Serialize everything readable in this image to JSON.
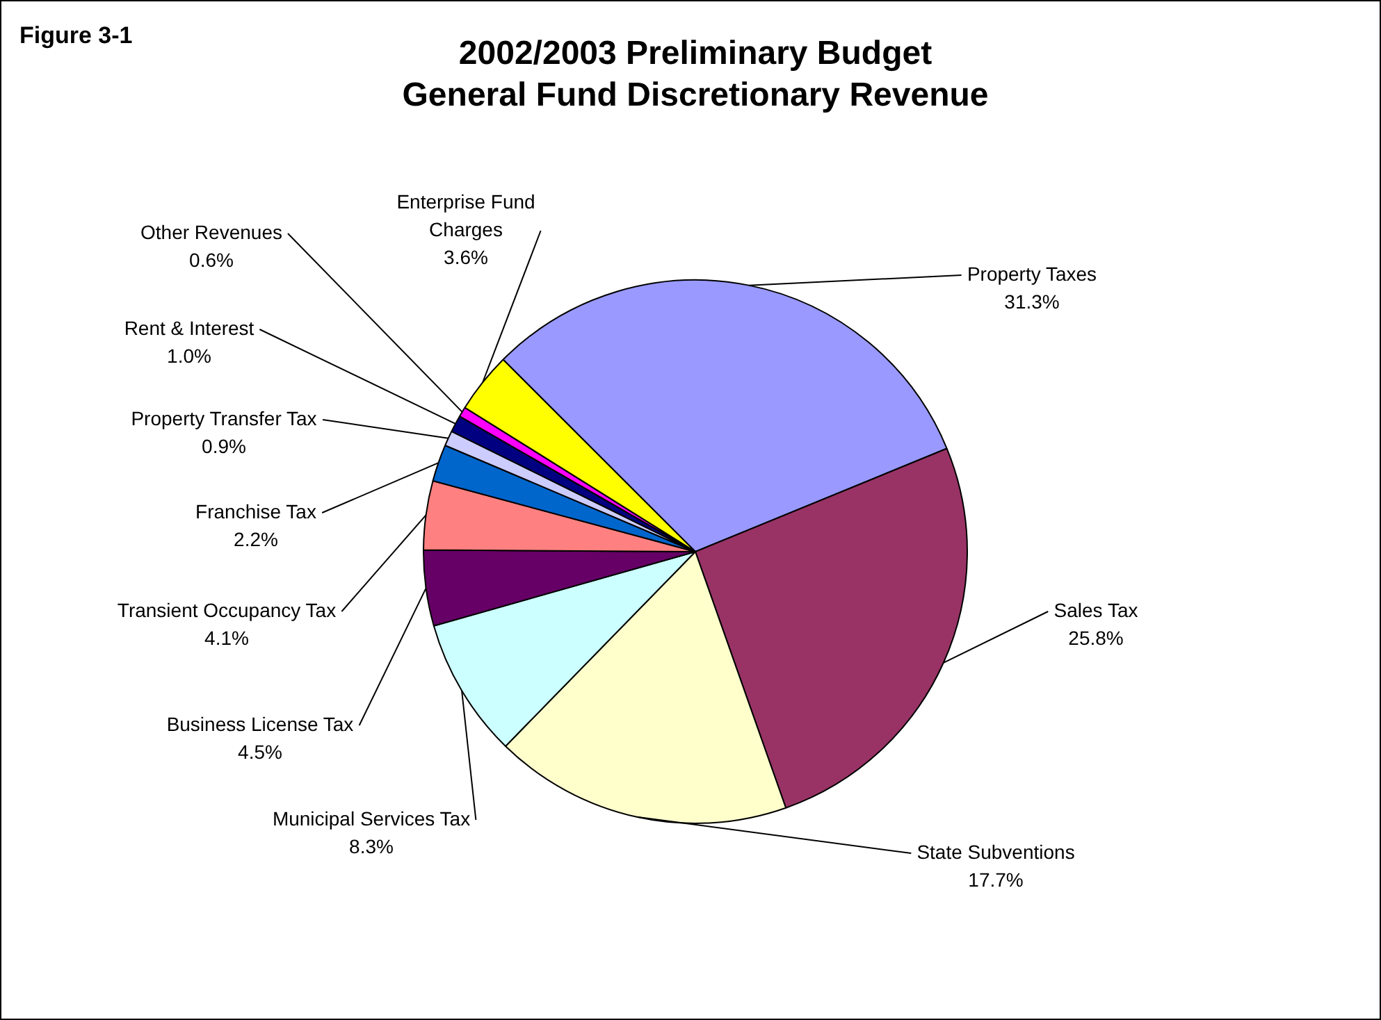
{
  "chart_data": {
    "type": "pie",
    "title": "2002/2003 Preliminary Budget\nGeneral Fund Discretionary Revenue",
    "annotations": [
      "Figure 3-1"
    ],
    "categories": [
      "Property Taxes",
      "Sales Tax",
      "State Subventions",
      "Municipal Services Tax",
      "Business License Tax",
      "Transient Occupancy Tax",
      "Franchise Tax",
      "Property Transfer Tax",
      "Rent & Interest",
      "Other Revenues",
      "Enterprise Fund Charges"
    ],
    "values": [
      31.3,
      25.8,
      17.7,
      8.3,
      4.5,
      4.1,
      2.2,
      0.9,
      1.0,
      0.6,
      3.6
    ],
    "value_labels": [
      "31.3%",
      "25.8%",
      "17.7%",
      "8.3%",
      "4.5%",
      "4.1%",
      "2.2%",
      "0.9%",
      "1.0%",
      "0.6%",
      "3.6%"
    ],
    "colors": [
      "#9999ff",
      "#993366",
      "#ffffcc",
      "#ccffff",
      "#660066",
      "#ff8080",
      "#0066cc",
      "#ccccff",
      "#000080",
      "#ff00ff",
      "#ffff00"
    ],
    "legend": false
  }
}
